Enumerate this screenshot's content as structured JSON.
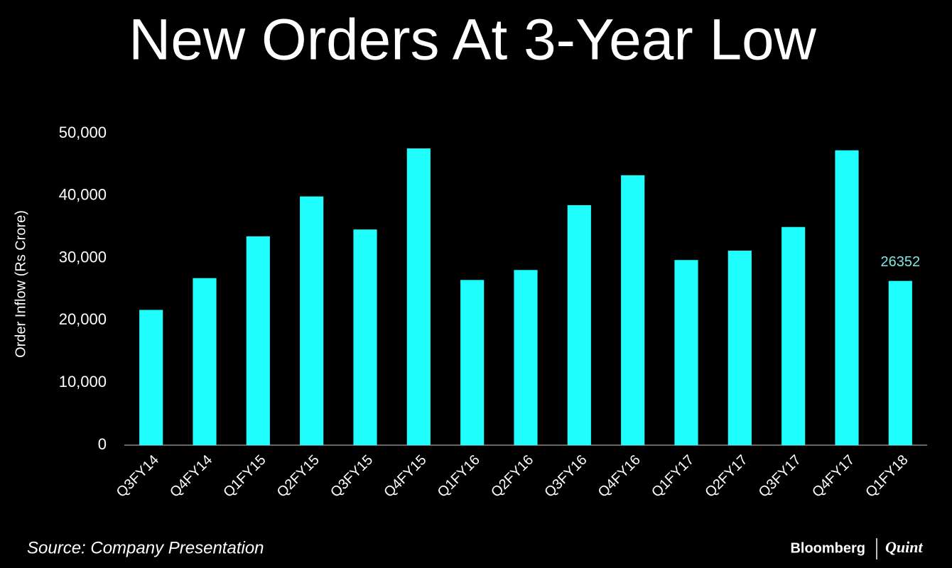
{
  "chart_data": {
    "type": "bar",
    "title": "New Orders At 3-Year Low",
    "y_label": "Order Inflow (Rs Crore)",
    "categories": [
      "Q3FY14",
      "Q4FY14",
      "Q1FY15",
      "Q2FY15",
      "Q3FY15",
      "Q4FY15",
      "Q1FY16",
      "Q2FY16",
      "Q3FY16",
      "Q4FY16",
      "Q1FY17",
      "Q2FY17",
      "Q3FY17",
      "Q4FY17",
      "Q1FY18"
    ],
    "values": [
      21700,
      26800,
      33500,
      39900,
      34600,
      47600,
      26500,
      28100,
      38500,
      43300,
      29700,
      31200,
      35000,
      47300,
      26352
    ],
    "value_labels": [
      null,
      null,
      null,
      null,
      null,
      null,
      null,
      null,
      null,
      null,
      null,
      null,
      null,
      null,
      "26352"
    ],
    "color": "#1ffdfd",
    "label_color": "#7fe6e6",
    "ylim": [
      0,
      50000
    ],
    "yticks": [
      0,
      {
        "value": 10000,
        "label": "10,000"
      },
      {
        "value": 20000,
        "label": "20,000"
      },
      {
        "value": 30000,
        "label": "30,000"
      },
      {
        "value": 40000,
        "label": "40,000"
      },
      {
        "value": 50000,
        "label": "50,000"
      }
    ],
    "grid": false,
    "source": "Source: Company Presentation",
    "logo": [
      "Bloomberg",
      "Quint"
    ]
  }
}
